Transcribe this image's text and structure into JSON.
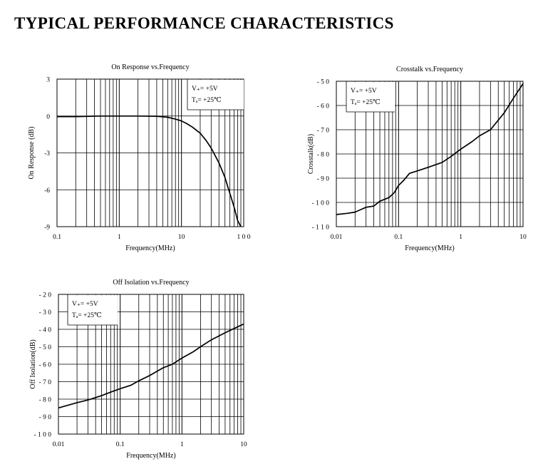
{
  "page": {
    "title": "TYPICAL PERFORMANCE CHARACTERISTICS"
  },
  "chart_data": [
    {
      "type": "line",
      "title": "On Response vs.Frequency",
      "xlabel": "Frequency(MHz)",
      "ylabel": "On Response (dB)",
      "xscale": "log",
      "xlim": [
        0.1,
        100
      ],
      "ylim": [
        -9,
        3
      ],
      "x_ticks": [
        0.1,
        1,
        10,
        100
      ],
      "x_tick_labels": [
        "0.1",
        "1",
        "10",
        "1 0 0"
      ],
      "y_ticks": [
        3,
        0,
        -3,
        -6,
        -9
      ],
      "y_tick_labels": [
        "3",
        "0",
        "-3",
        "-6",
        "-9"
      ],
      "grid": true,
      "legend": {
        "placement": "top-right",
        "lines": [
          "V₊= +5V",
          "Tₐ= +25℃"
        ]
      },
      "series": [
        {
          "x": [
            0.1,
            0.2,
            0.5,
            1,
            2,
            4,
            6,
            8,
            10,
            12,
            15,
            20,
            25,
            30,
            40,
            50,
            60,
            70,
            80,
            90
          ],
          "y": [
            -0.05,
            -0.05,
            0,
            0,
            0,
            -0.02,
            -0.1,
            -0.25,
            -0.4,
            -0.6,
            -0.9,
            -1.4,
            -2.0,
            -2.6,
            -3.8,
            -5.0,
            -6.3,
            -7.4,
            -8.5,
            -9.0
          ]
        }
      ]
    },
    {
      "type": "line",
      "title": "Crosstalk vs.Frequency",
      "xlabel": "Frequency(MHz)",
      "ylabel": "Crosstalk(dB)",
      "xscale": "log",
      "xlim": [
        0.01,
        10
      ],
      "ylim": [
        -110,
        -50
      ],
      "x_ticks": [
        0.01,
        0.1,
        1,
        10
      ],
      "x_tick_labels": [
        "0.01",
        "0.1",
        "1",
        "10"
      ],
      "y_ticks": [
        -50,
        -60,
        -70,
        -80,
        -90,
        -100,
        -110
      ],
      "y_tick_labels": [
        "- 5 0",
        "- 6 0",
        "- 7 0",
        "- 8 0",
        "- 9 0",
        "- 1 0 0",
        "- 1 1 0"
      ],
      "grid": true,
      "legend": {
        "placement": "top-left",
        "lines": [
          "V₊= +5V",
          "Tₐ= +25℃"
        ]
      },
      "series": [
        {
          "x": [
            0.01,
            0.015,
            0.02,
            0.03,
            0.04,
            0.05,
            0.07,
            0.085,
            0.1,
            0.12,
            0.15,
            0.2,
            0.3,
            0.5,
            0.7,
            1,
            1.5,
            2,
            3,
            5,
            7,
            10
          ],
          "y": [
            -105,
            -104.5,
            -104,
            -102,
            -101.5,
            -99.5,
            -98,
            -96,
            -93,
            -91,
            -88,
            -87,
            -85.5,
            -83.5,
            -81,
            -78,
            -75,
            -72.5,
            -70,
            -63,
            -57,
            -51
          ]
        }
      ]
    },
    {
      "type": "line",
      "title": "Off Isolation vs.Frequency",
      "xlabel": "Frequency(MHz)",
      "ylabel": "Off Isolation(dB)",
      "xscale": "log",
      "xlim": [
        0.01,
        10
      ],
      "ylim": [
        -100,
        -20
      ],
      "x_ticks": [
        0.01,
        0.1,
        1,
        10
      ],
      "x_tick_labels": [
        "0.01",
        "0.1",
        "1",
        "10"
      ],
      "y_ticks": [
        -20,
        -30,
        -40,
        -50,
        -60,
        -70,
        -80,
        -90,
        -100
      ],
      "y_tick_labels": [
        "- 2 0",
        "- 3 0",
        "- 4 0",
        "- 5 0",
        "- 6 0",
        "- 7 0",
        "- 8 0",
        "- 9 0",
        "- 1 0 0"
      ],
      "grid": true,
      "legend": {
        "placement": "top-left",
        "lines": [
          "V₊= +5V",
          "Tₐ= +25℃"
        ]
      },
      "series": [
        {
          "x": [
            0.01,
            0.02,
            0.03,
            0.05,
            0.07,
            0.1,
            0.15,
            0.2,
            0.3,
            0.5,
            0.7,
            1,
            1.5,
            2,
            3,
            5,
            7,
            10
          ],
          "y": [
            -85,
            -82,
            -80.5,
            -78,
            -76,
            -74,
            -72,
            -69.5,
            -66.5,
            -62,
            -60,
            -56.5,
            -53,
            -50,
            -46,
            -42,
            -39.5,
            -37
          ]
        }
      ]
    }
  ]
}
